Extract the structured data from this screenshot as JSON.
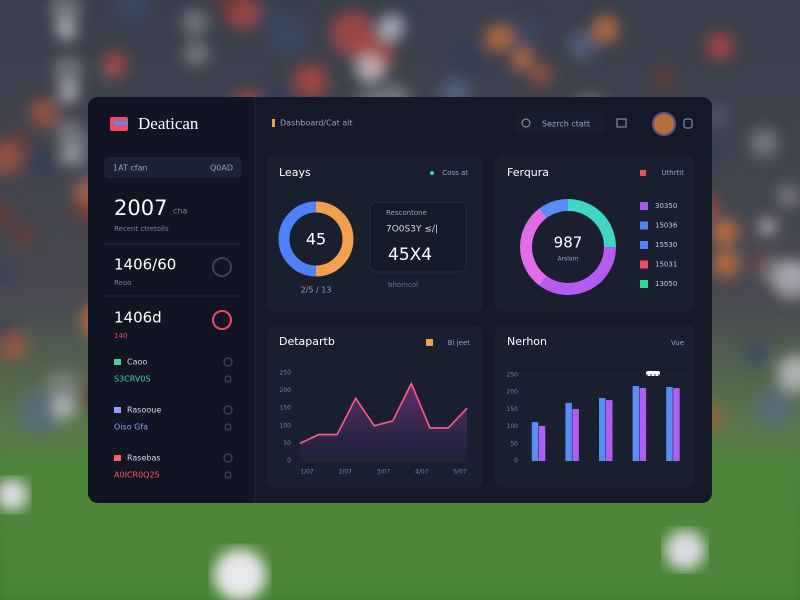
{
  "app": {
    "brand": "Deatican",
    "breadcrumb": "Dashboard/Cat ait",
    "search": "Sezrch ctatt"
  },
  "sidebar": {
    "filter": "1AT cfan",
    "filter_action": "Q0AD",
    "stats": [
      {
        "value": "2007",
        "unit": "cha",
        "caption": "Recent ctretolls"
      },
      {
        "value": "1406/60",
        "caption": "Reoo"
      },
      {
        "value": "1406d",
        "caption": "140"
      }
    ],
    "items": [
      {
        "title": "Caoo",
        "subtitle": "S3CRV0S",
        "color": "#3fd6a0"
      },
      {
        "title": "Rasooue",
        "subtitle": "Oiso Gfa",
        "color": "#8ea0ff"
      },
      {
        "title": "Rasebas",
        "subtitle": "A0ICR0Q25",
        "color": "#ff5a6a"
      }
    ]
  },
  "donut_card": {
    "title": "Leays",
    "tag": "Coss at",
    "center": "45",
    "caption": "2/5 / 13",
    "segments": [
      {
        "value": 50,
        "color": "#f2a04e"
      },
      {
        "value": 50,
        "color": "#4f80f5"
      }
    ],
    "stat_label": "Rescontone",
    "stat_sub": "7O0S3Y ≤/|",
    "stat_value": "45X4",
    "stat_foot": "bhomcol"
  },
  "ring_card": {
    "title": "Ferqura",
    "tag": "Uthrtit",
    "center": "987",
    "center_sub": "Arslam",
    "segments": [
      {
        "value": 25,
        "color": "#3fd6c6"
      },
      {
        "value": 35,
        "color": "#b45cf2"
      },
      {
        "value": 30,
        "color": "#e26be8"
      },
      {
        "value": 10,
        "color": "#5a8cf5"
      }
    ],
    "legend": [
      {
        "label": "30350",
        "color": "#a35cf2"
      },
      {
        "label": "15036",
        "color": "#4f80f5"
      },
      {
        "label": "15530",
        "color": "#4f80f5"
      },
      {
        "label": "15031",
        "color": "#ef4a5e"
      },
      {
        "label": "13050",
        "color": "#2fd69a"
      }
    ]
  },
  "line_card": {
    "title": "Detapartb",
    "tag": "Bi jeet",
    "tag_color": "#f2a04e",
    "color": "#ff5a8a",
    "ylim": [
      0,
      250
    ],
    "yticks": [
      0,
      50,
      100,
      150,
      200,
      250
    ],
    "x_labels": [
      "1/07",
      "2/07",
      "3/07",
      "4/07",
      "5/07"
    ],
    "values": [
      50,
      75,
      75,
      178,
      100,
      114,
      220,
      94,
      94,
      150
    ]
  },
  "bar_card": {
    "title": "Nerhon",
    "tag": "Vue",
    "ylim": [
      0,
      250
    ],
    "yticks": [
      0,
      50,
      100,
      150,
      200,
      250
    ],
    "series": [
      {
        "color": "#5a8cf5",
        "values": [
          113,
          169,
          183,
          218,
          215
        ]
      },
      {
        "color": "#b35cf0",
        "values": [
          102,
          151,
          177,
          212,
          212
        ]
      }
    ]
  }
}
